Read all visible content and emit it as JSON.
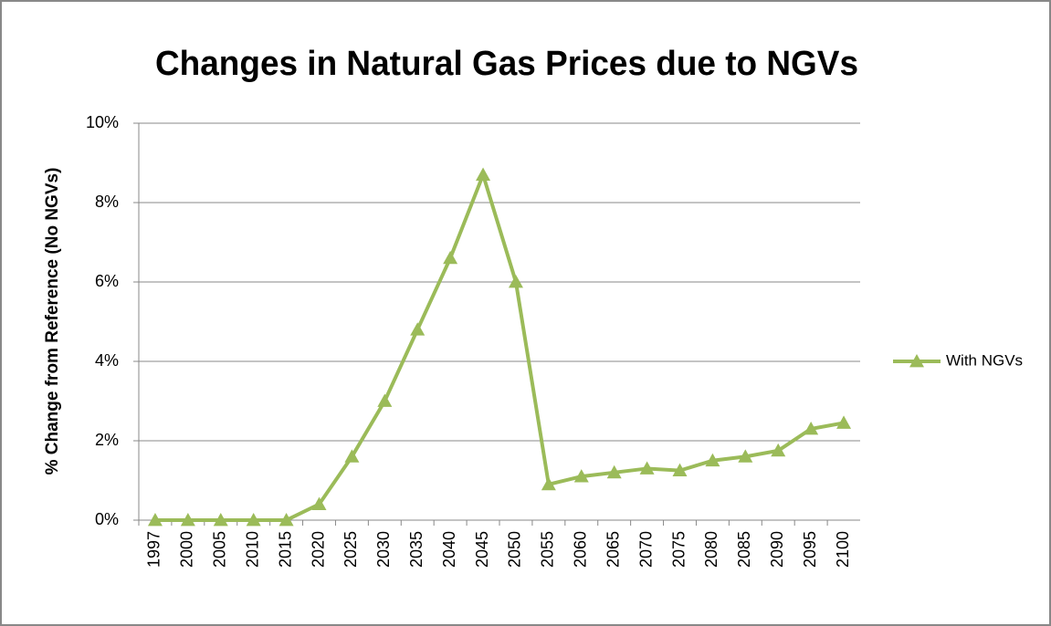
{
  "chart_data": {
    "type": "line",
    "title": "Changes in Natural Gas Prices due to NGVs",
    "y_label": "% Change from Reference (No NGVs)",
    "categories": [
      "1997",
      "2000",
      "2005",
      "2010",
      "2015",
      "2020",
      "2025",
      "2030",
      "2035",
      "2040",
      "2045",
      "2050",
      "2055",
      "2060",
      "2065",
      "2070",
      "2075",
      "2080",
      "2085",
      "2090",
      "2095",
      "2100"
    ],
    "series": [
      {
        "name": "With NGVs",
        "color": "#9bbb59",
        "values": [
          0,
          0,
          0,
          0,
          0,
          0.4,
          1.6,
          3.0,
          4.8,
          6.6,
          8.7,
          6.0,
          0.9,
          1.1,
          1.2,
          1.3,
          1.25,
          1.5,
          1.6,
          1.75,
          2.3,
          2.45
        ]
      }
    ],
    "ylim": [
      0,
      10
    ],
    "yticks": [
      {
        "value": 0,
        "label": "0%"
      },
      {
        "value": 2,
        "label": "2%"
      },
      {
        "value": 4,
        "label": "4%"
      },
      {
        "value": 6,
        "label": "6%"
      },
      {
        "value": 8,
        "label": "8%"
      },
      {
        "value": 10,
        "label": "10%"
      }
    ],
    "grid": true,
    "legend": "right"
  }
}
